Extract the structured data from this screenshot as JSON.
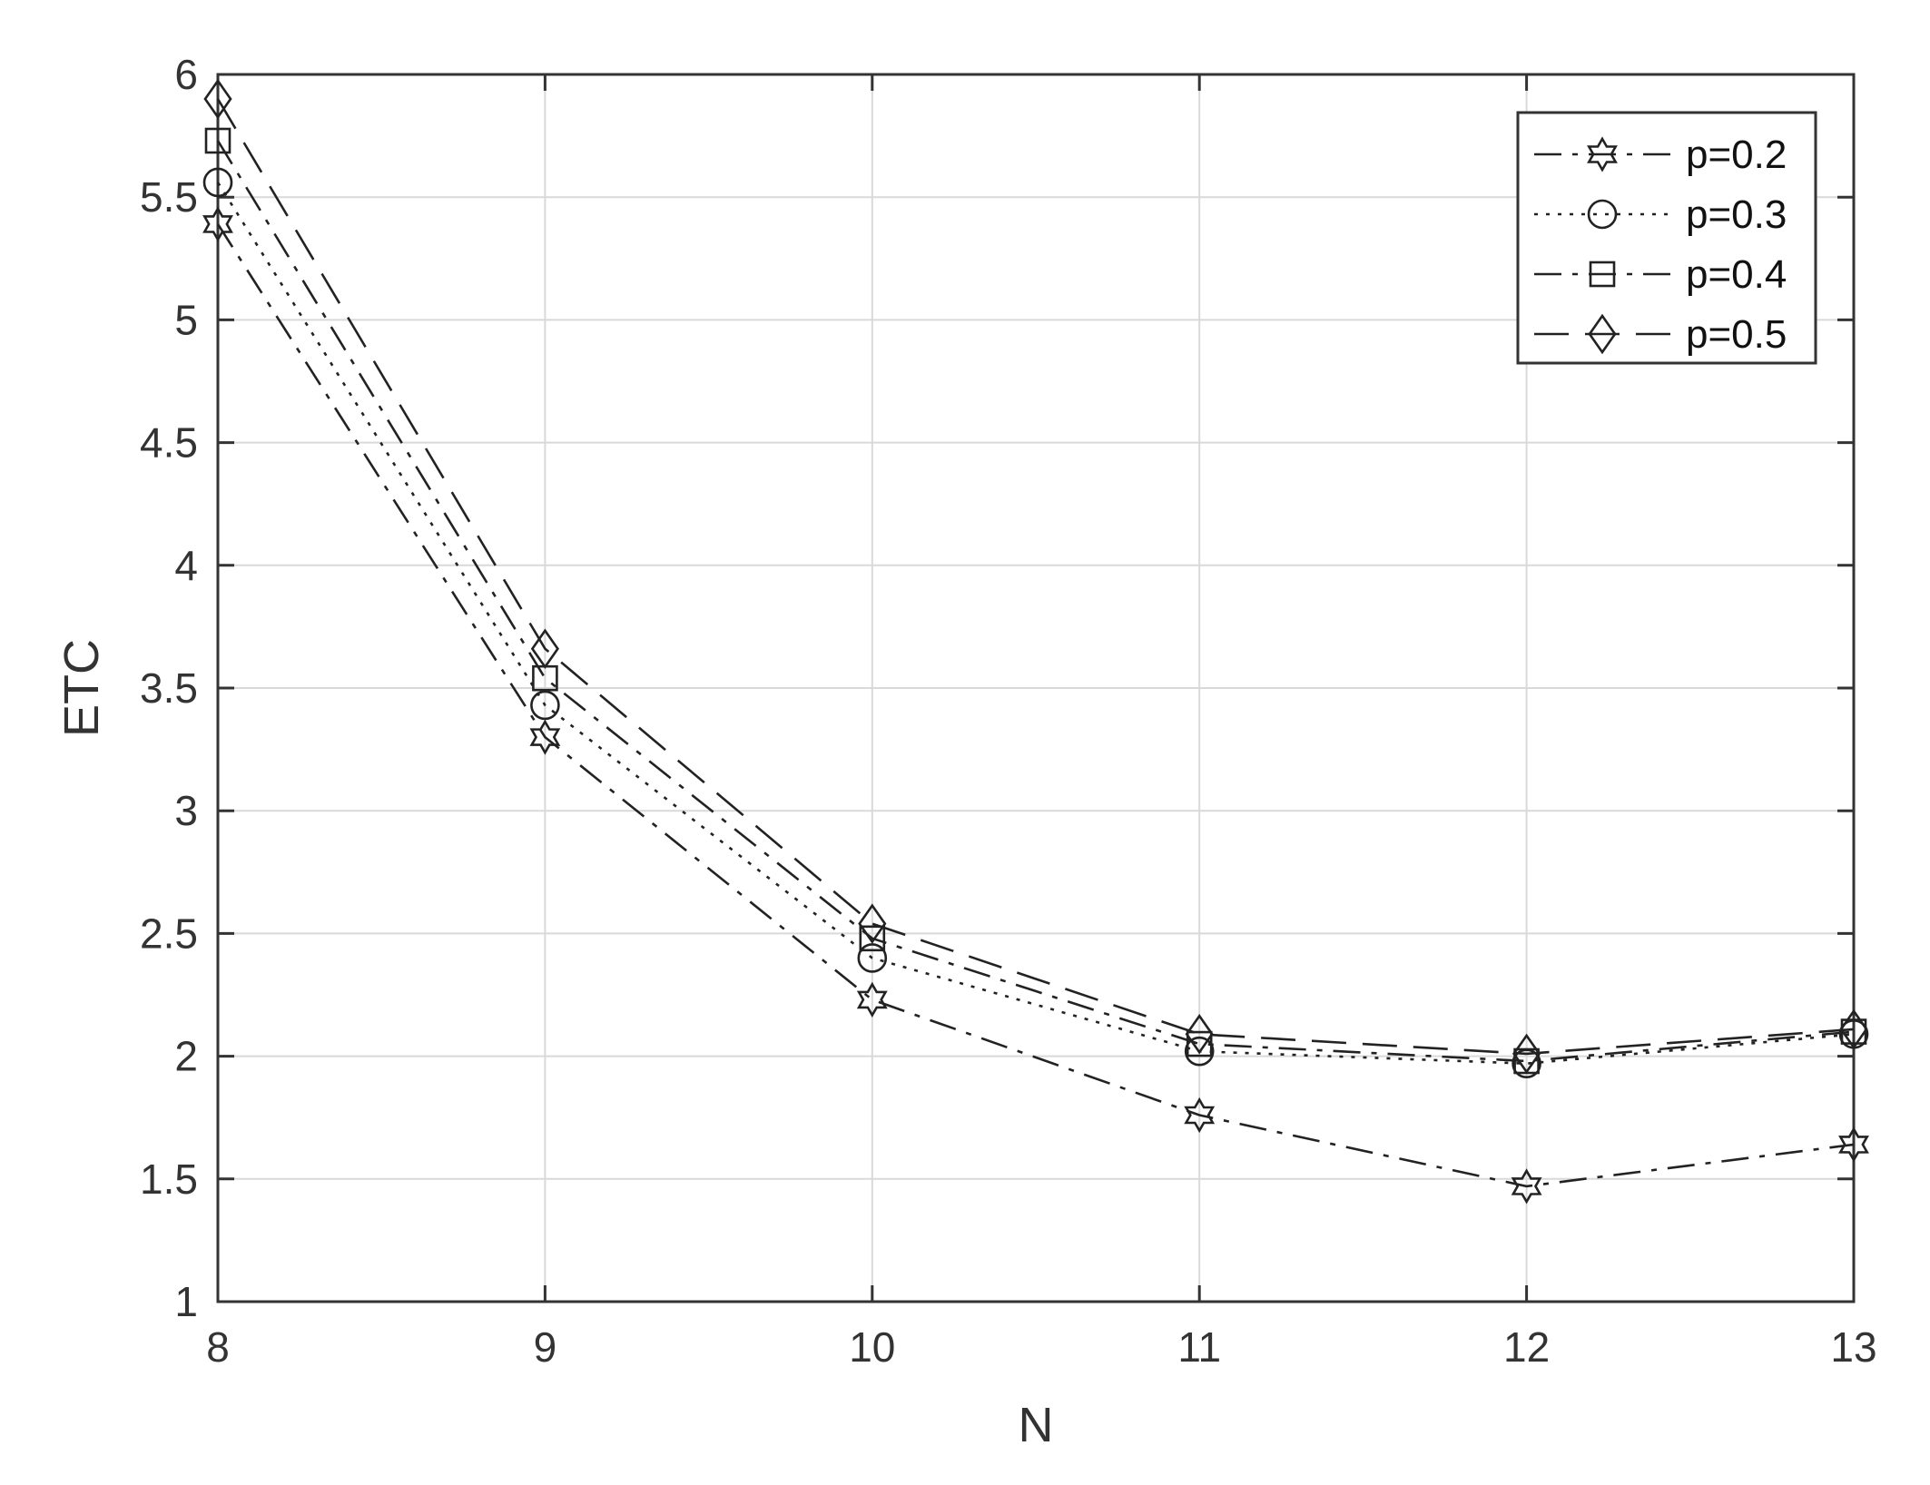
{
  "chart_data": {
    "type": "line",
    "title": "",
    "xlabel": "N",
    "ylabel": "ETC",
    "xlim": [
      8,
      13
    ],
    "ylim": [
      1,
      6
    ],
    "xticks": [
      "8",
      "9",
      "10",
      "11",
      "12",
      "13"
    ],
    "yticks": [
      "1",
      "1.5",
      "2",
      "2.5",
      "3",
      "3.5",
      "4",
      "4.5",
      "5",
      "5.5",
      "6"
    ],
    "x": [
      8,
      9,
      10,
      11,
      12,
      13
    ],
    "grid": true,
    "legend_position": "top-right",
    "series": [
      {
        "name": "p=0.2",
        "marker": "hexagram",
        "line_style": "dash-dot",
        "color": "#222222",
        "values": [
          5.39,
          3.3,
          2.23,
          1.76,
          1.47,
          1.64
        ]
      },
      {
        "name": "p=0.3",
        "marker": "circle",
        "line_style": "dotted",
        "color": "#222222",
        "values": [
          5.56,
          3.43,
          2.4,
          2.02,
          1.97,
          2.09
        ]
      },
      {
        "name": "p=0.4",
        "marker": "square",
        "line_style": "dash-dot",
        "color": "#222222",
        "values": [
          5.73,
          3.54,
          2.48,
          2.05,
          1.98,
          2.1
        ]
      },
      {
        "name": "p=0.5",
        "marker": "diamond",
        "line_style": "dashed",
        "color": "#222222",
        "values": [
          5.9,
          3.66,
          2.54,
          2.09,
          2.01,
          2.11
        ]
      }
    ]
  }
}
